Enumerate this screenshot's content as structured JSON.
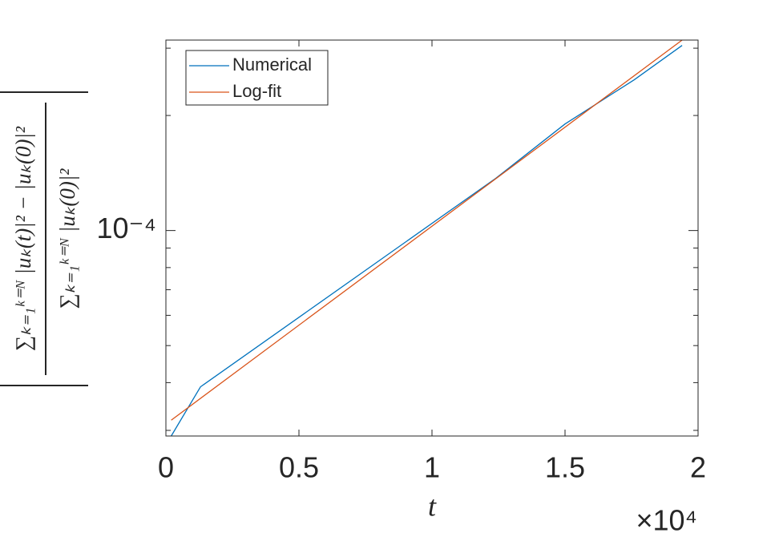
{
  "chart_data": {
    "type": "line",
    "ylabel": {
      "numerator": "∑ₖ₌₁ᵏ⁼ᴺ |uₖ(t)|² − |uₖ(0)|²",
      "denominator": "∑ₖ₌₁ᵏ⁼ᴺ |uₖ(0)|²"
    },
    "xlabel": "t",
    "x_multiplier": "×10⁴",
    "xlim": [
      0,
      2
    ],
    "xticks": [
      0,
      0.5,
      1,
      1.5,
      2
    ],
    "ylim": [
      2.9e-05,
      0.000315
    ],
    "yticks": [
      {
        "value": 0.0001,
        "label": "10⁻⁴"
      }
    ],
    "log_y": true,
    "minor_ticks": true,
    "grid": false,
    "legend": "upper-left",
    "series": [
      {
        "name": "Numerical",
        "color": "#0072bd",
        "x": [
          0.02,
          0.13,
          1.24,
          1.5,
          1.76,
          1.94
        ],
        "values": [
          2.9e-05,
          3.9e-05,
          0.000137,
          0.00019,
          0.000248,
          0.000305
        ]
      },
      {
        "name": "Log-fit",
        "color": "#d95319",
        "x": [
          0.02,
          1.94
        ],
        "values": [
          3.19e-05,
          0.000315
        ]
      }
    ]
  }
}
